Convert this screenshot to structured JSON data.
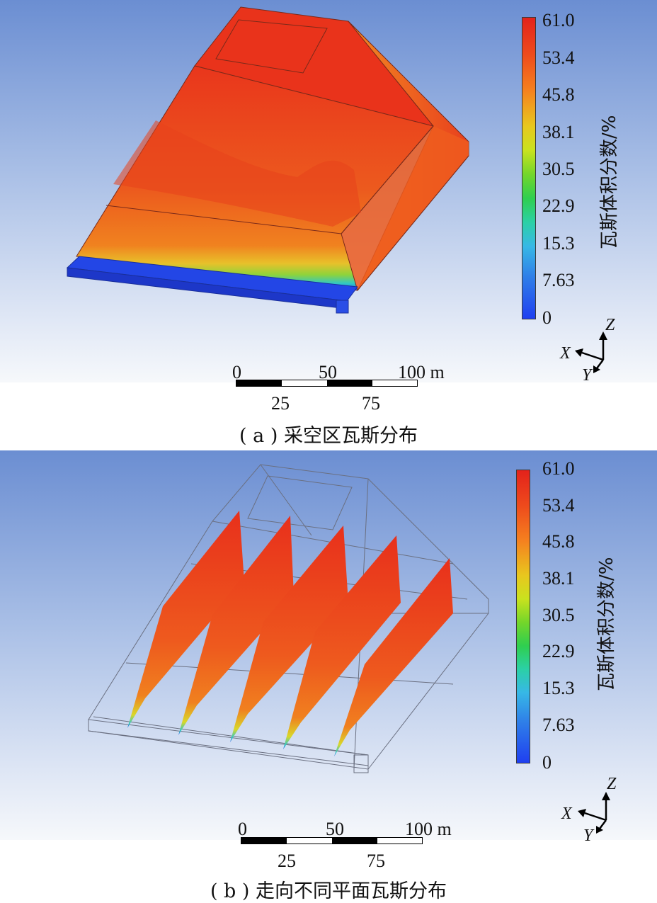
{
  "panel_a": {
    "caption": "( a ) 采空区瓦斯分布",
    "colorbar_title": "瓦斯体积分数/%",
    "colorbar_ticks": [
      "61.0",
      "53.4",
      "45.8",
      "38.1",
      "30.5",
      "22.9",
      "15.3",
      "7.63",
      "0"
    ],
    "scale_top": [
      "0",
      "50",
      "100 m"
    ],
    "scale_bottom": [
      "25",
      "75"
    ],
    "axes": {
      "x": "X",
      "y": "Y",
      "z": "Z"
    }
  },
  "panel_b": {
    "caption": "( b ) 走向不同平面瓦斯分布",
    "colorbar_title": "瓦斯体积分数/%",
    "colorbar_ticks": [
      "61.0",
      "53.4",
      "45.8",
      "38.1",
      "30.5",
      "22.9",
      "15.3",
      "7.63",
      "0"
    ],
    "scale_top": [
      "0",
      "50",
      "100 m"
    ],
    "scale_bottom": [
      "25",
      "75"
    ],
    "axes": {
      "x": "X",
      "y": "Y",
      "z": "Z"
    }
  },
  "colors": {
    "high": "#e3221b",
    "mid": "#e8c71e",
    "low": "#1f3ff0"
  }
}
